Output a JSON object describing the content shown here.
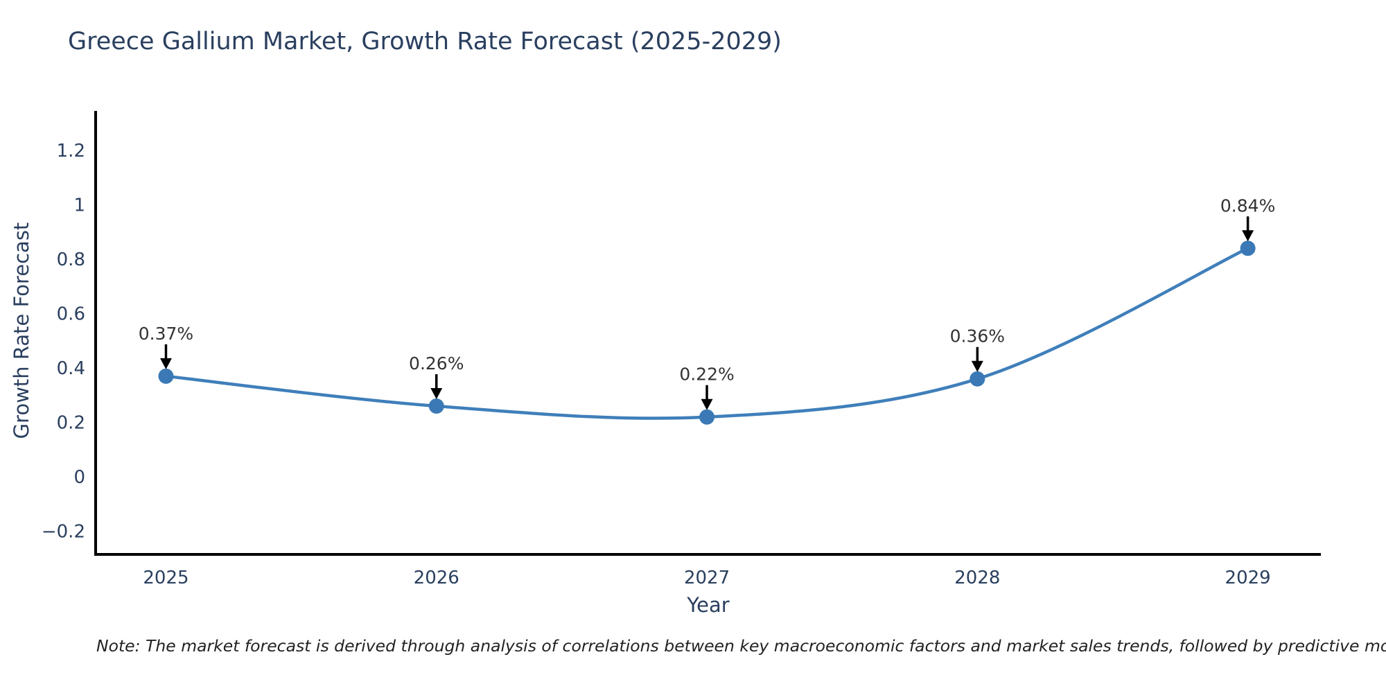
{
  "chart_data": {
    "type": "line",
    "title": "Greece Gallium Market, Growth Rate Forecast (2025-2029)",
    "xlabel": "Year",
    "ylabel": "Growth Rate Forecast",
    "x": [
      2025,
      2026,
      2027,
      2028,
      2029
    ],
    "values": [
      0.37,
      0.26,
      0.22,
      0.36,
      0.84
    ],
    "point_labels": [
      "0.37%",
      "0.26%",
      "0.22%",
      "0.36%",
      "0.84%"
    ],
    "xtick_labels": [
      "2025",
      "2026",
      "2027",
      "2028",
      "2029"
    ],
    "ytick_values": [
      -0.2,
      0,
      0.2,
      0.4,
      0.6,
      0.8,
      1,
      1.2
    ],
    "ytick_labels": [
      "−0.2",
      "0",
      "0.2",
      "0.4",
      "0.6",
      "0.8",
      "1",
      "1.2"
    ],
    "xlim": [
      2024.74,
      2029.27
    ],
    "ylim": [
      -0.285,
      1.345
    ],
    "line_shape": "spline",
    "grid": false,
    "legend": false,
    "colors": {
      "line": "#3f7fba",
      "marker": "#3a79b5",
      "axis": "#000000",
      "tick_text": "#2a3f5f",
      "annotation_text": "#333333",
      "arrow": "#000000",
      "background": "#ffffff"
    }
  },
  "footnote": {
    "text": "Note: The market forecast is derived through analysis of correlations between key macroeconomic factors and market sales trends, followed by predictive modeling to project future sales"
  }
}
